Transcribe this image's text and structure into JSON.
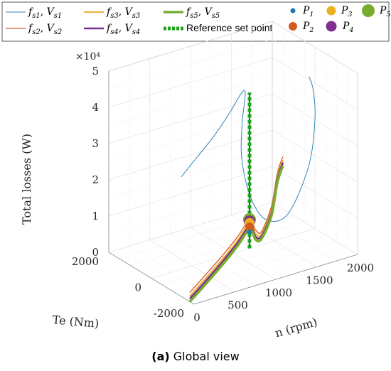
{
  "caption": {
    "label": "(a)",
    "text": " Global view"
  },
  "chart_data": {
    "type": "line3d",
    "title": "",
    "xlabel": "n (rpm)",
    "ylabel": "Te (Nm)",
    "zlabel": "Total losses (W)",
    "z_exponent_label": "×10⁴",
    "xlim": [
      0,
      2000
    ],
    "ylim": [
      -2000,
      2000
    ],
    "zlim": [
      0,
      5
    ],
    "x_ticks": [
      "0",
      "500",
      "1000",
      "1500",
      "2000"
    ],
    "y_ticks": [
      "-2000",
      "0",
      "2000"
    ],
    "z_ticks": [
      "0",
      "1",
      "2",
      "3",
      "4",
      "5"
    ],
    "grid": "on",
    "legend_lines": [
      {
        "key": "fs1",
        "sub": "s1",
        "vsub": "s1",
        "color": "#2e86bd",
        "width": 1
      },
      {
        "key": "fs2",
        "sub": "s2",
        "vsub": "s2",
        "color": "#d55a1e",
        "width": 1.3
      },
      {
        "key": "fs3",
        "sub": "s3",
        "vsub": "s3",
        "color": "#e8b038",
        "width": 2
      },
      {
        "key": "fs4",
        "sub": "s4",
        "vsub": "s4",
        "color": "#7a2c8e",
        "width": 2.6
      },
      {
        "key": "fs5",
        "sub": "s5",
        "vsub": "s5",
        "color": "#77ac30",
        "width": 3.6
      }
    ],
    "reference_label": "Reference set point",
    "reference_color": "#1aa51a",
    "legend_points": [
      {
        "name": "P",
        "sub": "1",
        "color": "#1f77b4",
        "r": 3.5
      },
      {
        "name": "P",
        "sub": "2",
        "color": "#d55a1e",
        "r": 6
      },
      {
        "name": "P",
        "sub": "3",
        "color": "#edb120",
        "r": 6.5
      },
      {
        "name": "P",
        "sub": "4",
        "color": "#7e2f8e",
        "r": 7.5
      },
      {
        "name": "P",
        "sub": "5",
        "color": "#77ac30",
        "r": 9
      }
    ],
    "series": [
      {
        "name": "fs1, Vs1",
        "color": "#2e86bd",
        "width": 1,
        "points": [
          [
            0,
            -1400,
            3.3
          ],
          [
            300,
            -1000,
            3.5
          ],
          [
            600,
            -600,
            3.7
          ],
          [
            900,
            -200,
            4.0
          ],
          [
            1100,
            0,
            4.35
          ],
          [
            1200,
            200,
            4.2
          ],
          [
            1200,
            350,
            3.3
          ],
          [
            1250,
            550,
            2.2
          ],
          [
            1400,
            700,
            1.0
          ],
          [
            1600,
            750,
            0.25
          ],
          [
            1850,
            700,
            0.25
          ],
          [
            2000,
            300,
            1.6
          ],
          [
            2000,
            0,
            3.0
          ],
          [
            1900,
            -300,
            4.0
          ],
          [
            1850,
            -300,
            4.4
          ]
        ]
      },
      {
        "name": "fs2, Vs2",
        "color": "#d55a1e",
        "width": 1.3,
        "points": [
          [
            0,
            -1800,
            0.25
          ],
          [
            300,
            -1400,
            0.4
          ],
          [
            600,
            -1000,
            0.55
          ],
          [
            900,
            -600,
            0.75
          ],
          [
            1150,
            -200,
            0.9
          ],
          [
            1300,
            100,
            0.4
          ],
          [
            1450,
            400,
            0.15
          ],
          [
            1650,
            700,
            0.6
          ],
          [
            1800,
            1000,
            1.3
          ],
          [
            2000,
            1500,
            1.45
          ]
        ]
      },
      {
        "name": "fs3, Vs3",
        "color": "#e8b038",
        "width": 2,
        "points": [
          [
            0,
            -1800,
            0.15
          ],
          [
            300,
            -1400,
            0.3
          ],
          [
            600,
            -1000,
            0.45
          ],
          [
            900,
            -600,
            0.65
          ],
          [
            1150,
            -200,
            0.8
          ],
          [
            1300,
            100,
            0.3
          ],
          [
            1450,
            400,
            0.08
          ],
          [
            1650,
            700,
            0.5
          ],
          [
            1800,
            1000,
            1.2
          ],
          [
            2000,
            1500,
            1.35
          ]
        ]
      },
      {
        "name": "fs4, Vs4",
        "color": "#7a2c8e",
        "width": 2.6,
        "points": [
          [
            0,
            -1800,
            0.08
          ],
          [
            300,
            -1400,
            0.22
          ],
          [
            600,
            -1000,
            0.38
          ],
          [
            900,
            -600,
            0.58
          ],
          [
            1150,
            -200,
            0.72
          ],
          [
            1300,
            100,
            0.22
          ],
          [
            1450,
            400,
            0.02
          ],
          [
            1650,
            700,
            0.42
          ],
          [
            1800,
            1000,
            1.12
          ],
          [
            2000,
            1500,
            1.28
          ]
        ]
      },
      {
        "name": "fs5, Vs5",
        "color": "#77ac30",
        "width": 3.6,
        "points": [
          [
            0,
            -1800,
            0.0
          ],
          [
            300,
            -1400,
            0.14
          ],
          [
            600,
            -1000,
            0.3
          ],
          [
            900,
            -600,
            0.5
          ],
          [
            1150,
            -200,
            0.64
          ],
          [
            1300,
            100,
            0.14
          ],
          [
            1450,
            400,
            -0.05
          ],
          [
            1650,
            700,
            0.34
          ],
          [
            1800,
            1000,
            1.04
          ],
          [
            2000,
            1500,
            1.2
          ]
        ]
      }
    ],
    "reference": {
      "x": 1200,
      "y": 0,
      "z": [
        0,
        4.3
      ]
    },
    "points": [
      {
        "name": "P1",
        "x": 1200,
        "y": 0,
        "z": 0.45,
        "color": "#1f77b4",
        "r": 3.5
      },
      {
        "name": "P2",
        "x": 1200,
        "y": 0,
        "z": 0.6,
        "color": "#d55a1e",
        "r": 6
      },
      {
        "name": "P3",
        "x": 1200,
        "y": 0,
        "z": 0.7,
        "color": "#edb120",
        "r": 7
      },
      {
        "name": "P4",
        "x": 1200,
        "y": 0,
        "z": 0.75,
        "color": "#7e2f8e",
        "r": 8
      },
      {
        "name": "P5",
        "x": 1200,
        "y": 0,
        "z": 0.8,
        "color": "#77ac30",
        "r": 9
      }
    ]
  }
}
